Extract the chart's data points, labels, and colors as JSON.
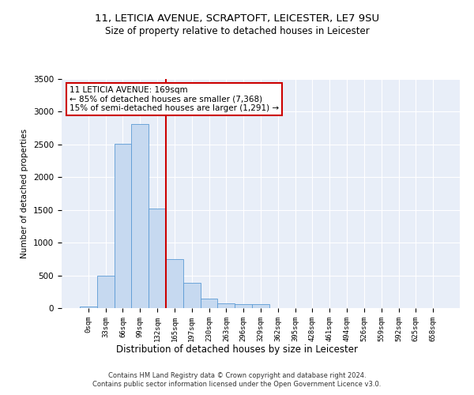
{
  "title": "11, LETICIA AVENUE, SCRAPTOFT, LEICESTER, LE7 9SU",
  "subtitle": "Size of property relative to detached houses in Leicester",
  "xlabel": "Distribution of detached houses by size in Leicester",
  "ylabel": "Number of detached properties",
  "bar_color": "#c6d9f0",
  "bar_edge_color": "#5b9bd5",
  "vline_color": "#cc0000",
  "vline_x": 4.5,
  "categories": [
    "0sqm",
    "33sqm",
    "66sqm",
    "99sqm",
    "132sqm",
    "165sqm",
    "197sqm",
    "230sqm",
    "263sqm",
    "296sqm",
    "329sqm",
    "362sqm",
    "395sqm",
    "428sqm",
    "461sqm",
    "494sqm",
    "526sqm",
    "559sqm",
    "592sqm",
    "625sqm",
    "658sqm"
  ],
  "values": [
    20,
    490,
    2510,
    2810,
    1520,
    750,
    385,
    145,
    75,
    55,
    55,
    0,
    0,
    0,
    0,
    0,
    0,
    0,
    0,
    0,
    0
  ],
  "annotation_text": "11 LETICIA AVENUE: 169sqm\n← 85% of detached houses are smaller (7,368)\n15% of semi-detached houses are larger (1,291) →",
  "annotation_box_color": "#ffffff",
  "annotation_box_edge": "#cc0000",
  "ylim": [
    0,
    3500
  ],
  "background_color": "#e8eef8",
  "footer1": "Contains HM Land Registry data © Crown copyright and database right 2024.",
  "footer2": "Contains public sector information licensed under the Open Government Licence v3.0."
}
